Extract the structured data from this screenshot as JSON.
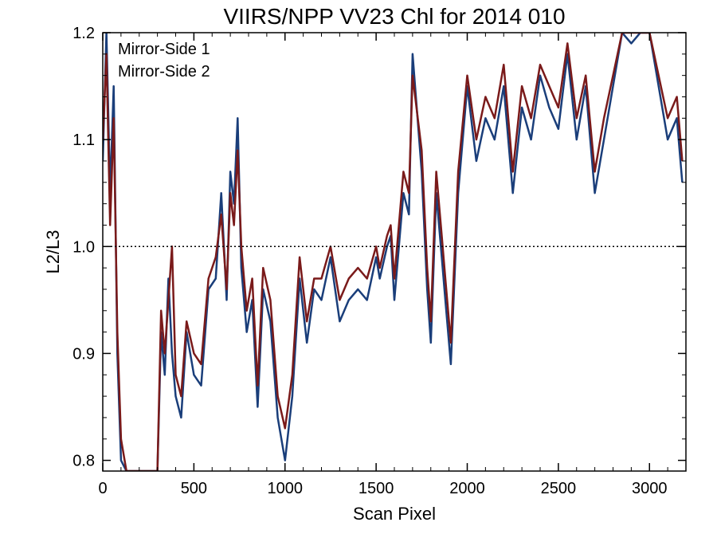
{
  "chart_data": {
    "type": "line",
    "title": "VIIRS/NPP VV23 Chl for 2014 010",
    "xlabel": "Scan Pixel",
    "ylabel": "L2/L3",
    "xlim": [
      0,
      3200
    ],
    "ylim": [
      0.79,
      1.2
    ],
    "xticks": [
      0,
      500,
      1000,
      1500,
      2000,
      2500,
      3000
    ],
    "xtick_labels": [
      "0",
      "500",
      "1000",
      "1500",
      "2000",
      "2500",
      "3000"
    ],
    "yticks": [
      0.8,
      0.9,
      1.0,
      1.1,
      1.2
    ],
    "ytick_labels": [
      "0.8",
      "0.9",
      "1.0",
      "1.1",
      "1.2"
    ],
    "reference_line": {
      "y": 1.0,
      "style": "dotted"
    },
    "legend_position": "top-left",
    "series": [
      {
        "name": "Mirror-Side 1",
        "color": "#1a3e7a",
        "x": [
          0,
          20,
          40,
          60,
          80,
          100,
          130,
          170,
          210,
          250,
          300,
          320,
          340,
          360,
          380,
          400,
          430,
          460,
          500,
          540,
          580,
          620,
          650,
          680,
          700,
          720,
          740,
          760,
          790,
          820,
          850,
          880,
          920,
          960,
          1000,
          1040,
          1080,
          1120,
          1160,
          1200,
          1250,
          1300,
          1350,
          1400,
          1450,
          1500,
          1520,
          1560,
          1580,
          1600,
          1650,
          1680,
          1700,
          1750,
          1780,
          1800,
          1830,
          1860,
          1880,
          1910,
          1950,
          2000,
          2050,
          2100,
          2150,
          2200,
          2250,
          2300,
          2350,
          2400,
          2450,
          2500,
          2550,
          2600,
          2650,
          2700,
          2750,
          2800,
          2850,
          2900,
          2950,
          3000,
          3050,
          3100,
          3150,
          3180
        ],
        "y": [
          1.08,
          1.2,
          1.05,
          1.15,
          0.9,
          0.8,
          0.79,
          0.79,
          0.79,
          0.79,
          0.79,
          0.92,
          0.88,
          0.97,
          0.9,
          0.86,
          0.84,
          0.92,
          0.88,
          0.87,
          0.96,
          0.97,
          1.05,
          0.95,
          1.07,
          1.04,
          1.12,
          0.98,
          0.92,
          0.95,
          0.85,
          0.96,
          0.93,
          0.84,
          0.8,
          0.86,
          0.97,
          0.91,
          0.96,
          0.95,
          0.99,
          0.93,
          0.95,
          0.96,
          0.95,
          0.99,
          0.97,
          1.0,
          1.01,
          0.95,
          1.05,
          1.03,
          1.18,
          1.07,
          0.96,
          0.91,
          1.05,
          0.99,
          0.95,
          0.89,
          1.05,
          1.15,
          1.08,
          1.12,
          1.1,
          1.15,
          1.05,
          1.13,
          1.1,
          1.16,
          1.13,
          1.11,
          1.18,
          1.1,
          1.15,
          1.05,
          1.1,
          1.15,
          1.2,
          1.19,
          1.2,
          1.2,
          1.15,
          1.1,
          1.12,
          1.06
        ]
      },
      {
        "name": "Mirror-Side 2",
        "color": "#7a1a1a",
        "x": [
          0,
          20,
          40,
          60,
          80,
          100,
          130,
          170,
          210,
          250,
          300,
          320,
          340,
          360,
          380,
          400,
          430,
          460,
          500,
          540,
          580,
          620,
          650,
          680,
          700,
          720,
          740,
          760,
          790,
          820,
          850,
          880,
          920,
          960,
          1000,
          1040,
          1080,
          1120,
          1160,
          1200,
          1250,
          1300,
          1350,
          1400,
          1450,
          1500,
          1520,
          1560,
          1580,
          1600,
          1650,
          1680,
          1700,
          1750,
          1780,
          1800,
          1830,
          1860,
          1880,
          1910,
          1950,
          2000,
          2050,
          2100,
          2150,
          2200,
          2250,
          2300,
          2350,
          2400,
          2450,
          2500,
          2550,
          2600,
          2650,
          2700,
          2750,
          2800,
          2850,
          2900,
          2950,
          3000,
          3050,
          3100,
          3150,
          3180
        ],
        "y": [
          1.1,
          1.18,
          1.02,
          1.12,
          0.92,
          0.82,
          0.79,
          0.79,
          0.79,
          0.79,
          0.79,
          0.94,
          0.9,
          0.95,
          1.0,
          0.88,
          0.86,
          0.93,
          0.9,
          0.89,
          0.97,
          0.99,
          1.03,
          0.96,
          1.05,
          1.02,
          1.09,
          1.0,
          0.94,
          0.97,
          0.87,
          0.98,
          0.95,
          0.86,
          0.83,
          0.88,
          0.99,
          0.93,
          0.97,
          0.97,
          1.0,
          0.95,
          0.97,
          0.98,
          0.97,
          1.0,
          0.98,
          1.01,
          1.02,
          0.97,
          1.07,
          1.05,
          1.16,
          1.09,
          0.98,
          0.93,
          1.07,
          1.01,
          0.97,
          0.91,
          1.07,
          1.16,
          1.1,
          1.14,
          1.12,
          1.17,
          1.07,
          1.15,
          1.12,
          1.17,
          1.15,
          1.13,
          1.19,
          1.12,
          1.16,
          1.07,
          1.12,
          1.16,
          1.2,
          1.2,
          1.2,
          1.2,
          1.16,
          1.12,
          1.14,
          1.08
        ]
      }
    ]
  }
}
